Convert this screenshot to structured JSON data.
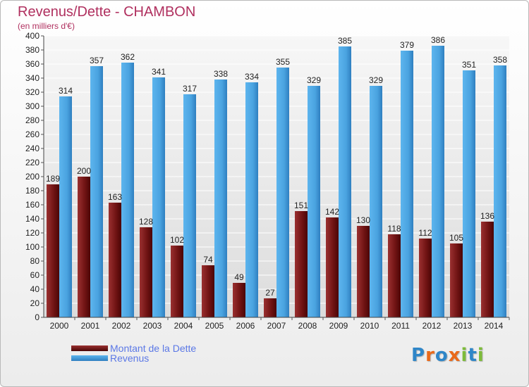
{
  "title": "Revenus/Dette - CHAMBON",
  "subtitle": "(en milliers d'€)",
  "legend": {
    "dette_label": "Montant de la Dette",
    "revenus_label": "Revenus"
  },
  "logo": {
    "text": "Proxiti",
    "letters": [
      {
        "char": "P",
        "color": "#2f86c8"
      },
      {
        "char": "r",
        "color": "#e9691a"
      },
      {
        "char": "o",
        "color": "#2f86c8"
      },
      {
        "char": "x",
        "color": "#e9691a"
      },
      {
        "char": "i",
        "color": "#7dbb3a"
      },
      {
        "char": "t",
        "color": "#2f86c8"
      },
      {
        "char": "i",
        "color": "#7dbb3a"
      }
    ]
  },
  "colors": {
    "dette": "#7a1c1c",
    "revenus": "#4aa3e0",
    "title": "#b0305f",
    "legend_text": "#5b78e6"
  },
  "chart_data": {
    "type": "bar",
    "title": "Revenus/Dette - CHAMBON",
    "subtitle": "(en milliers d'€)",
    "categories": [
      "2000",
      "2001",
      "2002",
      "2003",
      "2004",
      "2005",
      "2006",
      "2007",
      "2008",
      "2009",
      "2010",
      "2011",
      "2012",
      "2013",
      "2014"
    ],
    "series": [
      {
        "name": "Montant de la Dette",
        "values": [
          189,
          200,
          163,
          128,
          102,
          74,
          49,
          27,
          151,
          142,
          130,
          118,
          112,
          105,
          136
        ]
      },
      {
        "name": "Revenus",
        "values": [
          314,
          357,
          362,
          341,
          317,
          338,
          334,
          355,
          329,
          385,
          329,
          379,
          386,
          351,
          358
        ]
      }
    ],
    "ylim": [
      0,
      400
    ],
    "yticks": [
      0,
      20,
      40,
      60,
      80,
      100,
      120,
      140,
      160,
      180,
      200,
      220,
      240,
      260,
      280,
      300,
      320,
      340,
      360,
      380,
      400
    ],
    "grid": true,
    "legend_position": "bottom-left"
  }
}
